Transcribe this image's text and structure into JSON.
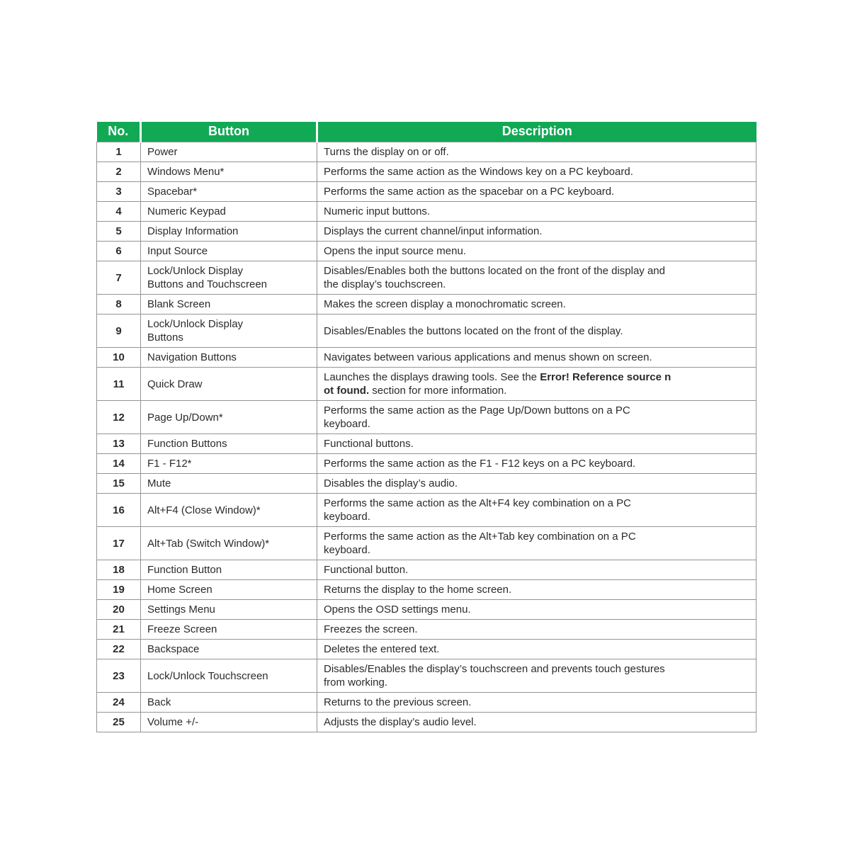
{
  "page": {
    "background_color": "#ffffff"
  },
  "table": {
    "accent_color": "#12a955",
    "header_text_color": "#ffffff",
    "border_color": "#949494",
    "text_color": "#2b2b2b",
    "headers": [
      "No.",
      "Button",
      "Description"
    ],
    "rows": [
      {
        "no": "1",
        "button_lines": [
          "Power"
        ],
        "desc_lines": [
          [
            {
              "t": "Turns the display on or off."
            }
          ]
        ]
      },
      {
        "no": "2",
        "button_lines": [
          "Windows Menu*"
        ],
        "desc_lines": [
          [
            {
              "t": "Performs the same action as the Windows key on a PC keyboard."
            }
          ]
        ]
      },
      {
        "no": "3",
        "button_lines": [
          "Spacebar*"
        ],
        "desc_lines": [
          [
            {
              "t": "Performs the same action as the spacebar on a PC keyboard."
            }
          ]
        ]
      },
      {
        "no": "4",
        "button_lines": [
          "Numeric Keypad"
        ],
        "desc_lines": [
          [
            {
              "t": "Numeric input buttons."
            }
          ]
        ]
      },
      {
        "no": "5",
        "button_lines": [
          "Display Information"
        ],
        "desc_lines": [
          [
            {
              "t": "Displays the current channel/input information."
            }
          ]
        ]
      },
      {
        "no": "6",
        "button_lines": [
          "Input Source"
        ],
        "desc_lines": [
          [
            {
              "t": "Opens the input source menu."
            }
          ]
        ]
      },
      {
        "no": "7",
        "button_lines": [
          "Lock/Unlock Display",
          "Buttons and Touchscreen"
        ],
        "desc_lines": [
          [
            {
              "t": "Disables/Enables both the buttons located on the front of the display and"
            }
          ],
          [
            {
              "t": "the display’s touchscreen."
            }
          ]
        ]
      },
      {
        "no": "8",
        "button_lines": [
          "Blank Screen"
        ],
        "desc_lines": [
          [
            {
              "t": "Makes the screen display a monochromatic screen."
            }
          ]
        ]
      },
      {
        "no": "9",
        "button_lines": [
          "Lock/Unlock Display",
          "Buttons"
        ],
        "desc_lines": [
          [
            {
              "t": "Disables/Enables the buttons located on the front of the display."
            }
          ]
        ]
      },
      {
        "no": "10",
        "button_lines": [
          "Navigation Buttons"
        ],
        "desc_lines": [
          [
            {
              "t": "Navigates between various applications and menus shown on screen."
            }
          ]
        ]
      },
      {
        "no": "11",
        "button_lines": [
          "Quick Draw"
        ],
        "desc_lines": [
          [
            {
              "t": "Launches the displays drawing tools. See the "
            },
            {
              "t": "Error! Reference source n",
              "b": true
            }
          ],
          [
            {
              "t": "ot found.",
              "b": true
            },
            {
              "t": " section for more information."
            }
          ]
        ]
      },
      {
        "no": "12",
        "button_lines": [
          "Page Up/Down*"
        ],
        "desc_lines": [
          [
            {
              "t": "Performs the same action as the Page Up/Down buttons on a PC"
            }
          ],
          [
            {
              "t": "keyboard."
            }
          ]
        ]
      },
      {
        "no": "13",
        "button_lines": [
          "Function Buttons"
        ],
        "desc_lines": [
          [
            {
              "t": "Functional buttons."
            }
          ]
        ]
      },
      {
        "no": "14",
        "button_lines": [
          "F1 - F12*"
        ],
        "desc_lines": [
          [
            {
              "t": "Performs the same action as the F1 - F12 keys on a PC keyboard."
            }
          ]
        ]
      },
      {
        "no": "15",
        "button_lines": [
          "Mute"
        ],
        "desc_lines": [
          [
            {
              "t": "Disables the display’s audio."
            }
          ]
        ]
      },
      {
        "no": "16",
        "button_lines": [
          "Alt+F4 (Close Window)*"
        ],
        "desc_lines": [
          [
            {
              "t": "Performs the same action as the Alt+F4 key combination on a PC"
            }
          ],
          [
            {
              "t": "keyboard."
            }
          ]
        ]
      },
      {
        "no": "17",
        "button_lines": [
          "Alt+Tab (Switch Window)*"
        ],
        "desc_lines": [
          [
            {
              "t": "Performs the same action as the Alt+Tab key combination on a PC"
            }
          ],
          [
            {
              "t": "keyboard."
            }
          ]
        ]
      },
      {
        "no": "18",
        "button_lines": [
          "Function Button"
        ],
        "desc_lines": [
          [
            {
              "t": "Functional button."
            }
          ]
        ]
      },
      {
        "no": "19",
        "button_lines": [
          "Home Screen"
        ],
        "desc_lines": [
          [
            {
              "t": "Returns the display to the home screen."
            }
          ]
        ]
      },
      {
        "no": "20",
        "button_lines": [
          "Settings Menu"
        ],
        "desc_lines": [
          [
            {
              "t": "Opens the OSD settings menu."
            }
          ]
        ]
      },
      {
        "no": "21",
        "button_lines": [
          "Freeze Screen"
        ],
        "desc_lines": [
          [
            {
              "t": "Freezes the screen."
            }
          ]
        ]
      },
      {
        "no": "22",
        "button_lines": [
          "Backspace"
        ],
        "desc_lines": [
          [
            {
              "t": "Deletes the entered text."
            }
          ]
        ]
      },
      {
        "no": "23",
        "button_lines": [
          "Lock/Unlock Touchscreen"
        ],
        "desc_lines": [
          [
            {
              "t": "Disables/Enables the display’s touchscreen and prevents touch gestures"
            }
          ],
          [
            {
              "t": "from working."
            }
          ]
        ]
      },
      {
        "no": "24",
        "button_lines": [
          "Back"
        ],
        "desc_lines": [
          [
            {
              "t": "Returns to the previous screen."
            }
          ]
        ]
      },
      {
        "no": "25",
        "button_lines": [
          "Volume +/-"
        ],
        "desc_lines": [
          [
            {
              "t": "Adjusts the display’s audio level."
            }
          ]
        ]
      }
    ]
  }
}
